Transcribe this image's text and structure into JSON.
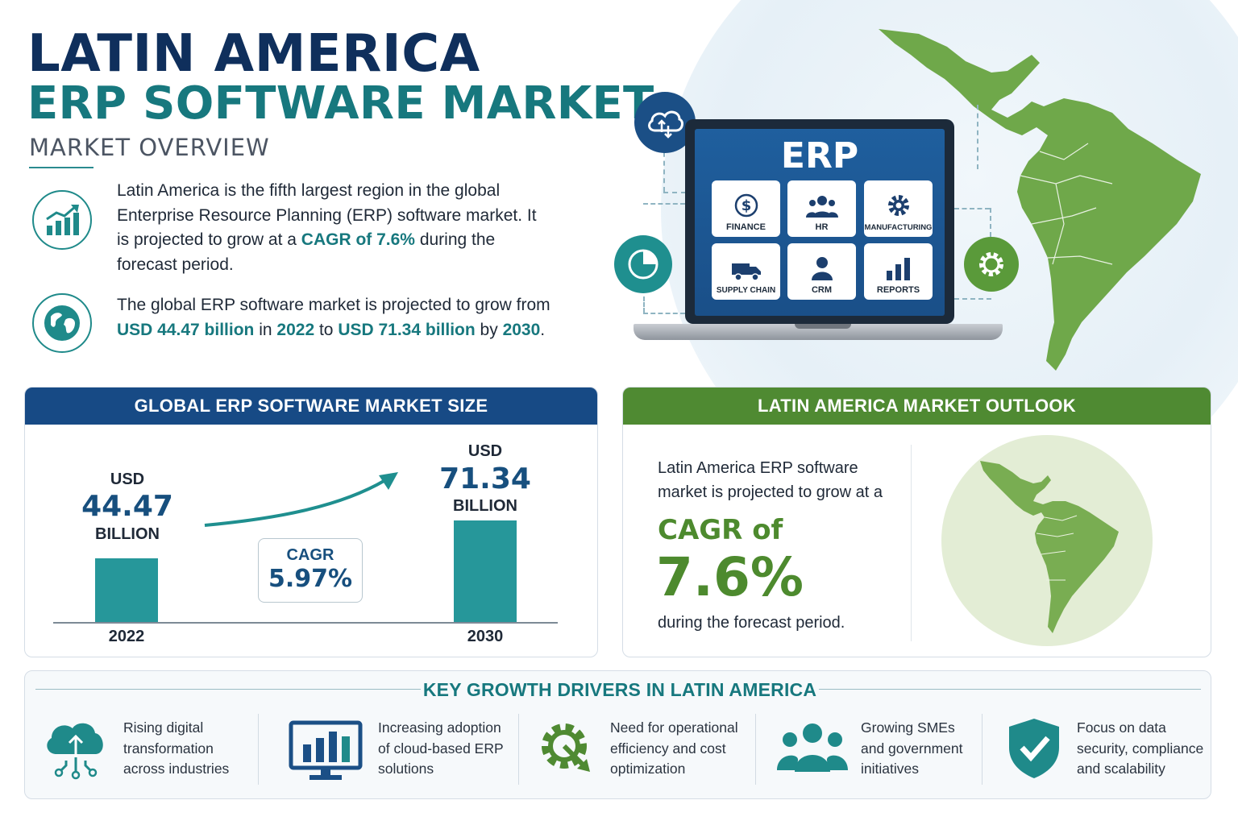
{
  "header": {
    "title_line1": "LATIN AMERICA",
    "title_line2": "ERP SOFTWARE MARKET",
    "subtitle": "MARKET OVERVIEW"
  },
  "overview": {
    "p1_part1": "Latin America is the fifth largest region in the global Enterprise Resource Planning (ERP) software market. It is projected to grow at a ",
    "p1_highlight": "CAGR of 7.6%",
    "p1_part2": " during the forecast period.",
    "p2_part1": "The global ERP software market is projected to grow from ",
    "p2_hl1": "USD 44.47 billion",
    "p2_part2": " in ",
    "p2_hl2": "2022",
    "p2_part3": " to ",
    "p2_hl3": "USD 71.34 billion",
    "p2_part4": " by ",
    "p2_hl4": "2030",
    "p2_part5": "."
  },
  "laptop": {
    "screen_title": "ERP",
    "modules": [
      "FINANCE",
      "HR",
      "MANUFACTURING",
      "SUPPLY CHAIN",
      "CRM",
      "REPORTS"
    ]
  },
  "global_panel": {
    "heading": "GLOBAL ERP SOFTWARE MARKET SIZE",
    "cagr_label": "CAGR",
    "cagr_value": "5.97%"
  },
  "chart_data": {
    "type": "bar",
    "categories": [
      "2022",
      "2030"
    ],
    "values": [
      44.47,
      71.34
    ],
    "unit_prefix": "USD",
    "unit_suffix": "BILLION",
    "value_labels": [
      "44.47",
      "71.34"
    ]
  },
  "outlook_panel": {
    "heading": "LATIN AMERICA MARKET OUTLOOK",
    "line1": "Latin America ERP software",
    "line2": "market is projected to grow at a",
    "cagr_label": "CAGR of",
    "cagr_value": "7.6%",
    "line3": "during the forecast period."
  },
  "drivers": {
    "heading": "KEY GROWTH DRIVERS IN LATIN AMERICA",
    "items": [
      {
        "line1": "Rising digital",
        "line2": "transformation",
        "line3": "across industries",
        "icon": "cloud-network-icon"
      },
      {
        "line1": "Increasing adoption",
        "line2": "of cloud-based ERP",
        "line3": "solutions",
        "icon": "monitor-chart-icon"
      },
      {
        "line1": "Need for operational",
        "line2": "efficiency and cost",
        "line3": "optimization",
        "icon": "gear-arrow-icon"
      },
      {
        "line1": "Growing SMEs",
        "line2": "and government",
        "line3": "initiatives",
        "icon": "people-group-icon"
      },
      {
        "line1": "Focus on data",
        "line2": "security, compliance",
        "line3": "and scalability",
        "icon": "shield-check-icon"
      }
    ]
  },
  "colors": {
    "navy": "#0f2f5c",
    "teal": "#17787e",
    "green": "#4d8a2e",
    "blue_header": "#174a85",
    "green_header": "#4f8a32"
  }
}
